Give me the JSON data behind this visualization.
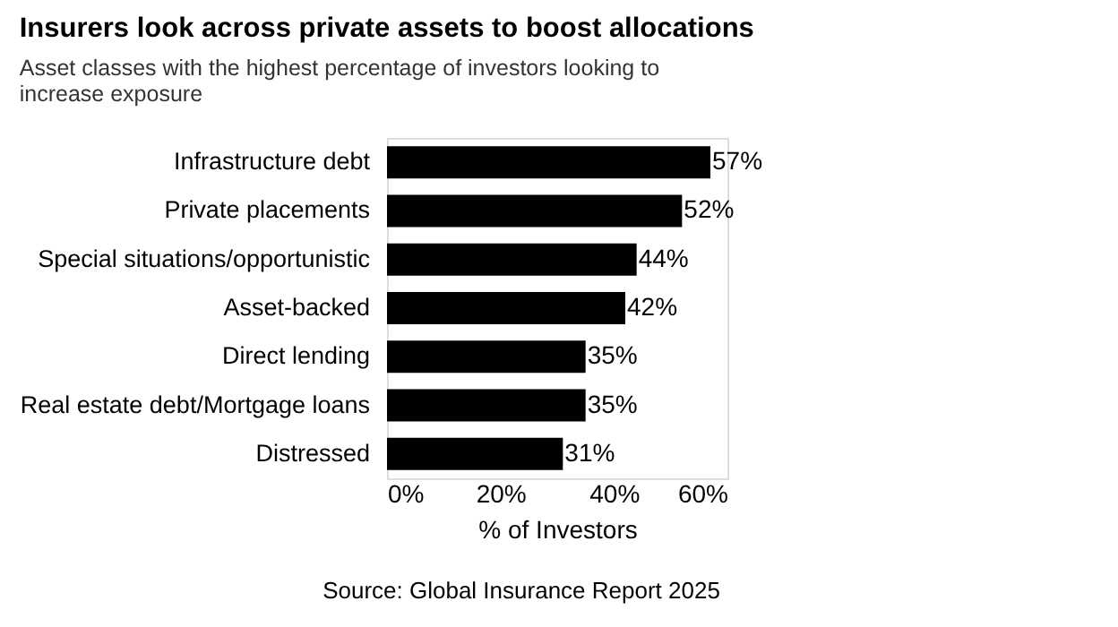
{
  "chart_data": {
    "type": "bar",
    "orientation": "horizontal",
    "title": "Insurers look across private assets to boost allocations",
    "subtitle": "Asset classes with the highest percentage of investors looking to increase exposure",
    "categories": [
      "Infrastructure debt",
      "Private placements",
      "Special situations/opportunistic",
      "Asset-backed",
      "Direct lending",
      "Real estate debt/Mortgage loans",
      "Distressed"
    ],
    "values": [
      57,
      52,
      44,
      42,
      35,
      35,
      31
    ],
    "value_labels": [
      "57%",
      "52%",
      "44%",
      "42%",
      "35%",
      "35%",
      "31%"
    ],
    "color": "#000000",
    "xlim": [
      0,
      60
    ],
    "xticks": [
      {
        "value": 0,
        "label": "0%"
      },
      {
        "value": 20,
        "label": "20%"
      },
      {
        "value": 40,
        "label": "40%"
      },
      {
        "value": 60,
        "label": "60%"
      }
    ],
    "xlabel": "% of Investors",
    "annotations": [
      "Source: Global Insurance Report 2025"
    ],
    "grid": false
  }
}
